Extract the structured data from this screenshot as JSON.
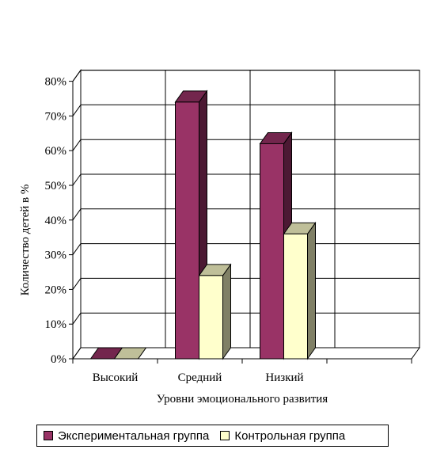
{
  "chart_data": {
    "type": "bar",
    "title": "",
    "xlabel": "Уровни эмоционального развития",
    "ylabel": "Количество детей в %",
    "categories": [
      "Высокий",
      "Средний",
      "Низкий"
    ],
    "series": [
      {
        "name": "Экспериментальная группа",
        "values": [
          0,
          74,
          62
        ]
      },
      {
        "name": "Контрольная группа",
        "values": [
          0,
          24,
          36
        ]
      }
    ],
    "ylim": [
      0,
      80
    ],
    "yticks": [
      "0%",
      "10%",
      "20%",
      "30%",
      "40%",
      "50%",
      "60%",
      "70%",
      "80%"
    ],
    "grid": true,
    "legend_position": "bottom",
    "colors": {
      "series": [
        "#993366",
        "#FFFFCC"
      ],
      "series_side": [
        "#4C1933",
        "#808066"
      ],
      "series_top": [
        "#73264D",
        "#BFBF99"
      ]
    }
  }
}
